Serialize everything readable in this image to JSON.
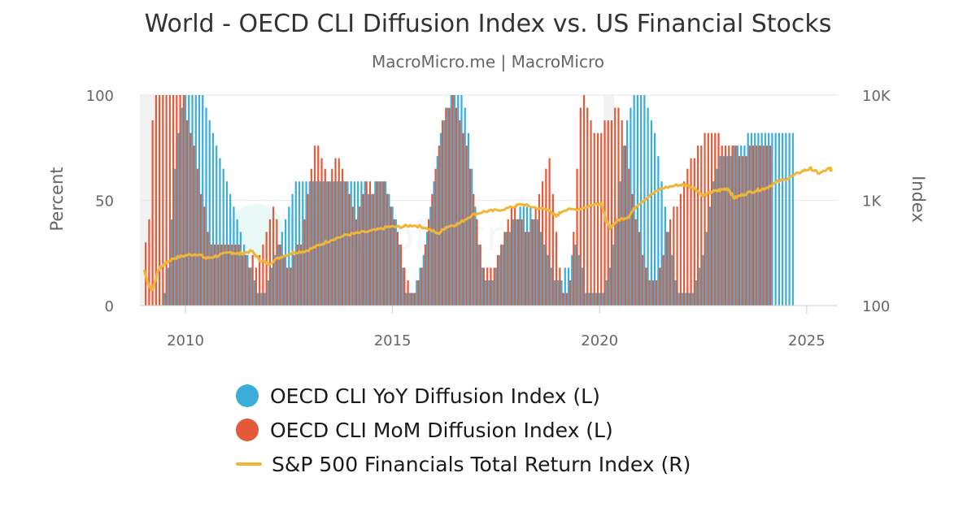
{
  "chart_data": {
    "type": "bar+line",
    "title": "World - OECD CLI Diffusion Index vs. US Financial Stocks",
    "subtitle": "MacroMicro.me | MacroMicro",
    "y_left": {
      "label": "Percent",
      "ticks": [
        "0",
        "50",
        "100"
      ],
      "range": [
        0,
        100
      ]
    },
    "y_right": {
      "label": "Index",
      "ticks": [
        "100",
        "1K",
        "10K"
      ],
      "range": [
        100,
        10000
      ],
      "scale": "log"
    },
    "x": {
      "ticks": [
        "2010",
        "2015",
        "2020",
        "2025"
      ],
      "range": [
        2008.9,
        2025.75
      ]
    },
    "shaded_periods": [
      [
        2008.9,
        2009.5
      ],
      [
        2020.1,
        2020.35
      ]
    ],
    "series": [
      {
        "name": "OECD CLI YoY Diffusion Index (L)",
        "color": "#3aaed8",
        "kind": "bar",
        "start": 2009.0,
        "step": 0.0833333,
        "values": [
          0,
          0,
          0,
          0,
          0,
          0,
          6,
          18,
          41,
          65,
          82,
          94,
          100,
          100,
          100,
          100,
          100,
          100,
          94,
          88,
          82,
          76,
          70,
          65,
          59,
          53,
          47,
          41,
          35,
          29,
          24,
          18,
          12,
          6,
          6,
          6,
          12,
          18,
          24,
          29,
          35,
          41,
          47,
          53,
          59,
          59,
          59,
          59,
          59,
          59,
          59,
          59,
          59,
          59,
          59,
          59,
          59,
          59,
          59,
          59,
          59,
          59,
          59,
          59,
          59,
          53,
          53,
          59,
          59,
          59,
          59,
          53,
          47,
          41,
          29,
          18,
          6,
          6,
          6,
          12,
          18,
          24,
          35,
          47,
          59,
          71,
          82,
          88,
          94,
          100,
          100,
          100,
          100,
          94,
          82,
          65,
          47,
          29,
          18,
          12,
          12,
          12,
          18,
          24,
          29,
          35,
          35,
          41,
          41,
          47,
          47,
          47,
          47,
          41,
          41,
          35,
          29,
          24,
          18,
          12,
          12,
          12,
          18,
          18,
          24,
          29,
          24,
          18,
          6,
          6,
          6,
          6,
          6,
          6,
          12,
          18,
          29,
          41,
          59,
          76,
          88,
          94,
          100,
          100,
          100,
          100,
          94,
          88,
          82,
          71,
          59,
          47,
          35,
          24,
          12,
          6,
          6,
          6,
          6,
          6,
          12,
          18,
          24,
          35,
          47,
          59,
          65,
          71,
          71,
          71,
          71,
          76,
          76,
          76,
          76,
          82,
          82,
          82,
          82,
          82,
          82,
          82,
          82,
          82,
          82,
          82,
          82,
          82,
          82
        ]
      },
      {
        "name": "OECD CLI MoM Diffusion Index (L)",
        "color": "#e35a3a",
        "kind": "bar",
        "start": 2009.04,
        "step": 0.0833333,
        "values": [
          30,
          41,
          88,
          100,
          100,
          100,
          100,
          100,
          100,
          100,
          100,
          100,
          88,
          82,
          76,
          65,
          53,
          47,
          35,
          29,
          29,
          29,
          29,
          29,
          29,
          29,
          29,
          29,
          24,
          24,
          18,
          24,
          18,
          24,
          29,
          35,
          41,
          47,
          41,
          29,
          24,
          18,
          18,
          24,
          29,
          29,
          41,
          53,
          65,
          76,
          76,
          70,
          65,
          59,
          65,
          70,
          70,
          65,
          59,
          53,
          47,
          41,
          47,
          53,
          59,
          59,
          53,
          59,
          59,
          59,
          53,
          47,
          41,
          35,
          29,
          18,
          12,
          6,
          6,
          12,
          18,
          29,
          41,
          53,
          65,
          76,
          88,
          94,
          94,
          100,
          94,
          88,
          82,
          76,
          65,
          53,
          41,
          29,
          18,
          18,
          18,
          18,
          24,
          29,
          35,
          41,
          47,
          47,
          41,
          41,
          35,
          35,
          41,
          47,
          53,
          59,
          65,
          70,
          53,
          35,
          18,
          6,
          6,
          12,
          35,
          65,
          94,
          100,
          94,
          88,
          82,
          82,
          82,
          88,
          88,
          88,
          94,
          94,
          88,
          76,
          65,
          53,
          41,
          35,
          24,
          18,
          12,
          12,
          12,
          18,
          24,
          35,
          41,
          47,
          47,
          53,
          59,
          65,
          70,
          70,
          76,
          76,
          82,
          82,
          82,
          82,
          82,
          76,
          76,
          76,
          76,
          76,
          71,
          71,
          71,
          76,
          76,
          76,
          76,
          76,
          76,
          76
        ]
      },
      {
        "name": "S&P 500 Financials Total Return Index (R)",
        "color": "#f0b638",
        "kind": "line",
        "points": [
          [
            2009.0,
            220
          ],
          [
            2009.1,
            160
          ],
          [
            2009.2,
            140
          ],
          [
            2009.35,
            220
          ],
          [
            2009.5,
            250
          ],
          [
            2009.7,
            280
          ],
          [
            2010.0,
            300
          ],
          [
            2010.3,
            310
          ],
          [
            2010.5,
            280
          ],
          [
            2010.8,
            300
          ],
          [
            2011.1,
            320
          ],
          [
            2011.3,
            310
          ],
          [
            2011.6,
            330
          ],
          [
            2011.8,
            270
          ],
          [
            2012.0,
            250
          ],
          [
            2012.3,
            290
          ],
          [
            2012.6,
            320
          ],
          [
            2012.9,
            330
          ],
          [
            2013.2,
            370
          ],
          [
            2013.5,
            420
          ],
          [
            2013.9,
            470
          ],
          [
            2014.2,
            490
          ],
          [
            2014.6,
            520
          ],
          [
            2014.9,
            560
          ],
          [
            2015.2,
            560
          ],
          [
            2015.5,
            580
          ],
          [
            2015.8,
            550
          ],
          [
            2016.1,
            480
          ],
          [
            2016.3,
            560
          ],
          [
            2016.6,
            600
          ],
          [
            2016.9,
            720
          ],
          [
            2017.2,
            780
          ],
          [
            2017.5,
            800
          ],
          [
            2017.9,
            860
          ],
          [
            2018.1,
            920
          ],
          [
            2018.4,
            860
          ],
          [
            2018.8,
            800
          ],
          [
            2018.95,
            700
          ],
          [
            2019.1,
            800
          ],
          [
            2019.5,
            830
          ],
          [
            2019.9,
            920
          ],
          [
            2020.05,
            940
          ],
          [
            2020.15,
            650
          ],
          [
            2020.25,
            550
          ],
          [
            2020.45,
            650
          ],
          [
            2020.7,
            700
          ],
          [
            2020.9,
            900
          ],
          [
            2021.2,
            1100
          ],
          [
            2021.5,
            1300
          ],
          [
            2021.9,
            1400
          ],
          [
            2022.1,
            1400
          ],
          [
            2022.3,
            1300
          ],
          [
            2022.5,
            1100
          ],
          [
            2022.7,
            1200
          ],
          [
            2022.9,
            1250
          ],
          [
            2023.1,
            1300
          ],
          [
            2023.25,
            1050
          ],
          [
            2023.5,
            1150
          ],
          [
            2023.8,
            1250
          ],
          [
            2024.0,
            1300
          ],
          [
            2024.3,
            1500
          ],
          [
            2024.6,
            1650
          ],
          [
            2024.9,
            1900
          ],
          [
            2025.1,
            2000
          ],
          [
            2025.3,
            1800
          ],
          [
            2025.55,
            2000
          ],
          [
            2025.6,
            1950
          ]
        ]
      }
    ],
    "watermark": "MacroMicro"
  }
}
